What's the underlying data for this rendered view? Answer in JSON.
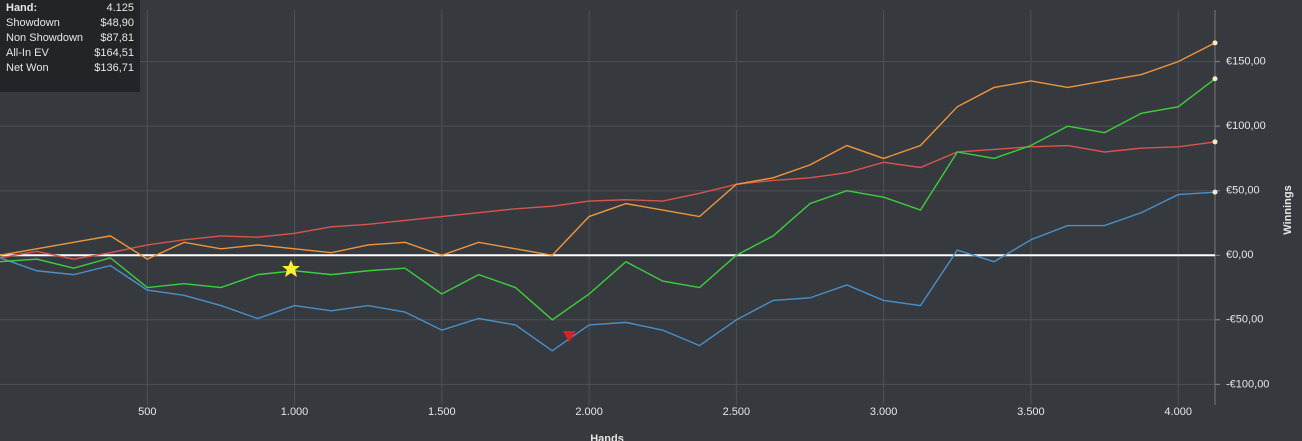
{
  "chart_data": {
    "type": "line",
    "x_label": "Hands",
    "y_label": "Winnings",
    "hand_label": "Hand:",
    "hand_value": "4.125",
    "x": [
      0,
      125,
      250,
      375,
      500,
      625,
      750,
      875,
      1000,
      1125,
      1250,
      1375,
      1500,
      1625,
      1750,
      1875,
      2000,
      2125,
      2250,
      2375,
      2500,
      2625,
      2750,
      2875,
      3000,
      3125,
      3250,
      3375,
      3500,
      3625,
      3750,
      3875,
      4000,
      4125
    ],
    "series": [
      {
        "name": "Showdown",
        "color": "#4a90c8",
        "total_label": "$48,90",
        "values": [
          -2,
          -12,
          -15,
          -8,
          -27,
          -31,
          -39,
          -49,
          -39,
          -43,
          -39,
          -44,
          -58,
          -49,
          -54,
          -74,
          -54,
          -52,
          -58,
          -70,
          -50,
          -35,
          -33,
          -23,
          -35,
          -39,
          4,
          -5,
          12,
          23,
          23,
          33,
          47,
          48.9
        ]
      },
      {
        "name": "Non Showdown",
        "color": "#d9534f",
        "total_label": "$87,81",
        "values": [
          -2,
          3,
          -3,
          2,
          8,
          12,
          15,
          14,
          17,
          22,
          24,
          27,
          30,
          33,
          36,
          38,
          42,
          43,
          42,
          48,
          55,
          58,
          60,
          64,
          72,
          68,
          80,
          82,
          84,
          85,
          80,
          83,
          84,
          87.81
        ]
      },
      {
        "name": "All-In EV",
        "color": "#f0953a",
        "total_label": "$164,51",
        "values": [
          0,
          5,
          10,
          15,
          -3,
          10,
          5,
          8,
          5,
          2,
          8,
          10,
          0,
          10,
          5,
          0,
          30,
          40,
          35,
          30,
          55,
          60,
          70,
          85,
          75,
          85,
          115,
          130,
          135,
          130,
          135,
          140,
          150,
          164.51
        ]
      },
      {
        "name": "Net Won",
        "color": "#3ccf3c",
        "total_label": "$136,71",
        "values": [
          -5,
          -3,
          -10,
          -2,
          -25,
          -22,
          -25,
          -15,
          -12,
          -15,
          -12,
          -10,
          -30,
          -15,
          -25,
          -50,
          -30,
          -5,
          -20,
          -25,
          0,
          15,
          40,
          50,
          45,
          35,
          80,
          75,
          85,
          100,
          95,
          110,
          115,
          136.71
        ]
      }
    ],
    "xlim": [
      0,
      4125
    ],
    "xticks": [
      500,
      {
        "value": 1000,
        "label": "1.000"
      },
      {
        "value": 1500,
        "label": "1.500"
      },
      {
        "value": 2000,
        "label": "2.000"
      },
      {
        "value": 2500,
        "label": "2.500"
      },
      {
        "value": 3000,
        "label": "3.000"
      },
      {
        "value": 3500,
        "label": "3.500"
      },
      {
        "value": 4000,
        "label": "4.000"
      }
    ],
    "ylim": [
      -116,
      190
    ],
    "yticks": [
      {
        "value": -100,
        "label": "-€100,00"
      },
      {
        "value": -50,
        "label": "-€50,00"
      },
      {
        "value": 0,
        "label": "€0,00"
      },
      {
        "value": 50,
        "label": "€50,00"
      },
      {
        "value": 100,
        "label": "€100,00"
      },
      {
        "value": 150,
        "label": "€150,00"
      }
    ],
    "grid": true
  }
}
